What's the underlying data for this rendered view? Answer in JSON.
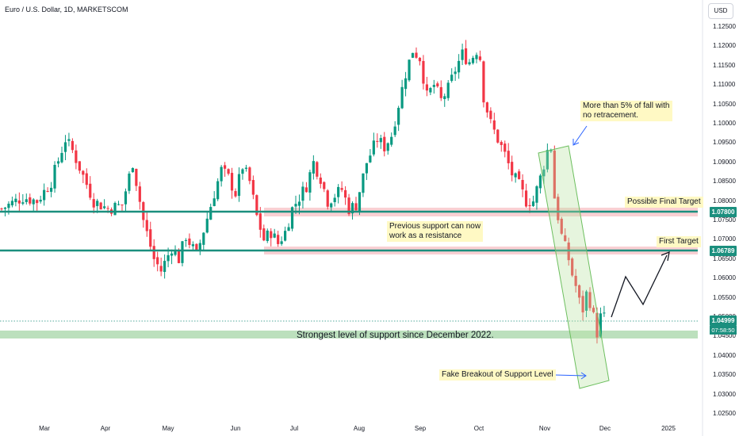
{
  "title": "Euro / U.S. Dollar, 1D, MARKETSCOM",
  "currency_button": "USD",
  "colors": {
    "up": "#089981",
    "down": "#f23645",
    "support_line": "#1b8f7e",
    "resistance_zone": "#f4a9ae",
    "support_zone": "#a5d6a7",
    "channel": "#b7e1a1",
    "arrow": "#2962ff",
    "projection": "#131722",
    "note_bg": "#fff9c4"
  },
  "annotations": {
    "fall_note": "More than 5% of fall with\nno retracement.",
    "final_target": "Possible Final Target",
    "first_target": "First Target",
    "previous_support": "Previous support can now\nwork as a resistance",
    "strongest_support": "Strongest level of support since December 2022.",
    "fake_breakout": "Fake Breakout of Support Level"
  },
  "price_labels": {
    "final_target": "1.07800",
    "first_target": "1.06789",
    "current": "1.04999",
    "countdown": "07:58:50"
  },
  "chart_data": {
    "type": "candlestick",
    "title": "Euro / U.S. Dollar, 1D, MARKETSCOM",
    "y_ticks": [
      "1.12500",
      "1.12000",
      "1.11500",
      "1.11000",
      "1.10500",
      "1.10000",
      "1.09500",
      "1.09000",
      "1.08500",
      "1.08000",
      "1.07500",
      "1.07000",
      "1.06500",
      "1.06000",
      "1.05500",
      "1.05000",
      "1.04500",
      "1.04000",
      "1.03500",
      "1.03000",
      "1.02500"
    ],
    "ylim": [
      1.023,
      1.129
    ],
    "x_ticks": [
      "Mar",
      "Apr",
      "May",
      "Jun",
      "Jul",
      "Aug",
      "Sep",
      "Oct",
      "Nov",
      "Dec",
      "2025"
    ],
    "levels": {
      "final_target": 1.078,
      "first_target": 1.06789,
      "current": 1.04999,
      "support_zone": [
        1.0462,
        1.0478
      ]
    },
    "close_path": [
      [
        0,
        1.078
      ],
      [
        6,
        1.081
      ],
      [
        10,
        1.08
      ],
      [
        14,
        1.085
      ],
      [
        18,
        1.096
      ],
      [
        20,
        1.093
      ],
      [
        26,
        1.08
      ],
      [
        30,
        1.078
      ],
      [
        34,
        1.079
      ],
      [
        37,
        1.09
      ],
      [
        40,
        1.075
      ],
      [
        43,
        1.065
      ],
      [
        45,
        1.062
      ],
      [
        48,
        1.068
      ],
      [
        50,
        1.065
      ],
      [
        52,
        1.071
      ],
      [
        55,
        1.066
      ],
      [
        60,
        1.082
      ],
      [
        62,
        1.088
      ],
      [
        64,
        1.086
      ],
      [
        66,
        1.082
      ],
      [
        68,
        1.089
      ],
      [
        70,
        1.085
      ],
      [
        72,
        1.076
      ],
      [
        74,
        1.07
      ],
      [
        76,
        1.072
      ],
      [
        78,
        1.069
      ],
      [
        80,
        1.072
      ],
      [
        82,
        1.078
      ],
      [
        86,
        1.084
      ],
      [
        88,
        1.09
      ],
      [
        90,
        1.086
      ],
      [
        92,
        1.08
      ],
      [
        96,
        1.083
      ],
      [
        98,
        1.078
      ],
      [
        100,
        1.079
      ],
      [
        103,
        1.09
      ],
      [
        106,
        1.096
      ],
      [
        108,
        1.094
      ],
      [
        110,
        1.097
      ],
      [
        112,
        1.105
      ],
      [
        114,
        1.113
      ],
      [
        116,
        1.119
      ],
      [
        118,
        1.117
      ],
      [
        120,
        1.107
      ],
      [
        122,
        1.11
      ],
      [
        124,
        1.106
      ],
      [
        126,
        1.109
      ],
      [
        128,
        1.114
      ],
      [
        130,
        1.118
      ],
      [
        132,
        1.116
      ],
      [
        134,
        1.119
      ],
      [
        135,
        1.117
      ],
      [
        136,
        1.107
      ],
      [
        138,
        1.1
      ],
      [
        140,
        1.096
      ],
      [
        142,
        1.092
      ],
      [
        144,
        1.087
      ],
      [
        146,
        1.084
      ],
      [
        148,
        1.08
      ],
      [
        150,
        1.08
      ],
      [
        152,
        1.086
      ],
      [
        154,
        1.093
      ],
      [
        155,
        1.094
      ],
      [
        156,
        1.081
      ],
      [
        157,
        1.076
      ],
      [
        158,
        1.071
      ],
      [
        159,
        1.068
      ],
      [
        160,
        1.065
      ],
      [
        161,
        1.061
      ],
      [
        162,
        1.058
      ],
      [
        163,
        1.054
      ],
      [
        164,
        1.052
      ],
      [
        165,
        1.056
      ],
      [
        166,
        1.054
      ],
      [
        167,
        1.05
      ],
      [
        168,
        1.046
      ],
      [
        169,
        1.05
      ],
      [
        170,
        1.0499
      ]
    ]
  }
}
